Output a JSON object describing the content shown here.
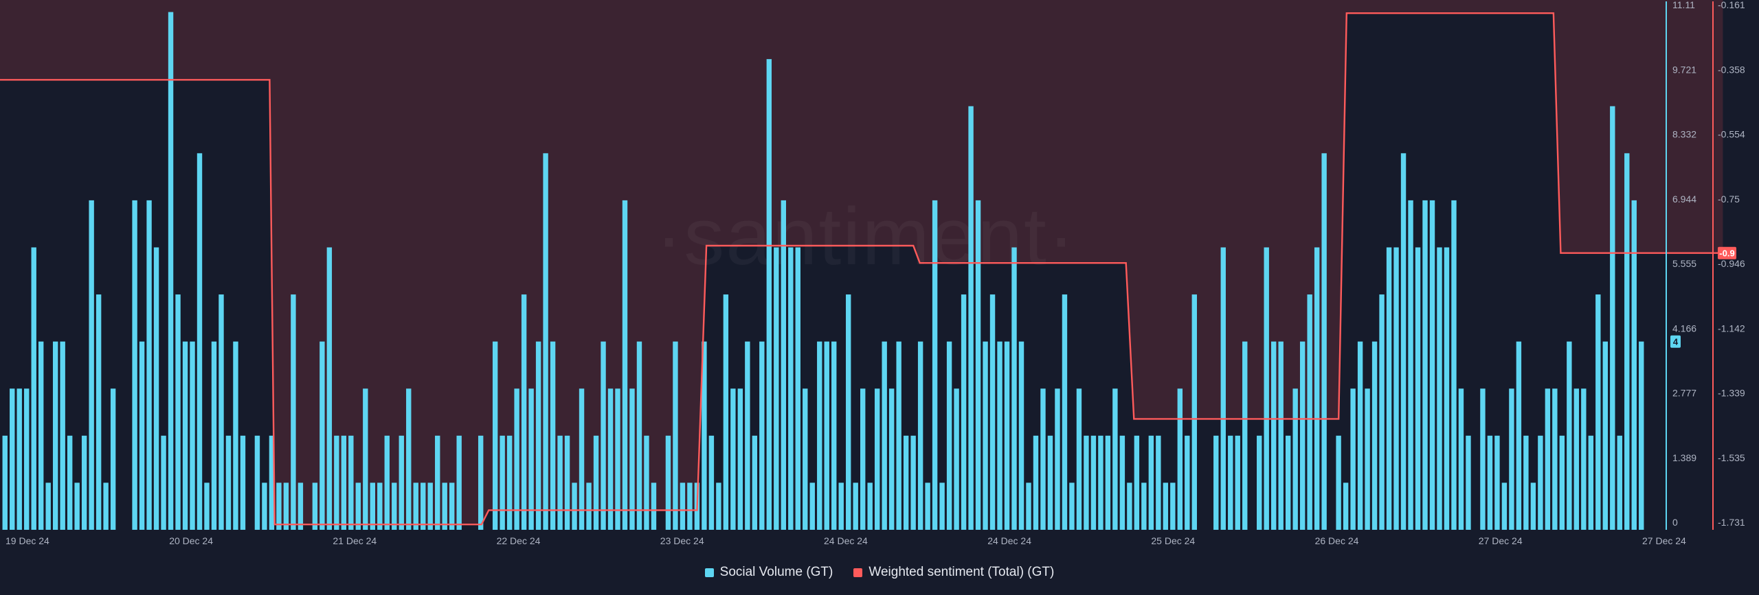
{
  "watermark": "·santiment·",
  "legend": {
    "volume_label": "Social Volume (GT)",
    "sentiment_label": "Weighted sentiment (Total) (GT)"
  },
  "colors": {
    "background": "#161b2b",
    "volume": "#5ed6f2",
    "sentiment_line": "#ff5b5b",
    "negative_fill": "#3d2432",
    "volume_axis": "#5ed6f2",
    "sentiment_axis": "#ff5b5b"
  },
  "chart_data": {
    "type": "bar+line",
    "x_tick_labels": [
      "19 Dec 24",
      "20 Dec 24",
      "21 Dec 24",
      "22 Dec 24",
      "23 Dec 24",
      "24 Dec 24",
      "24 Dec 24",
      "25 Dec 24",
      "26 Dec 24",
      "27 Dec 24",
      "27 Dec 24"
    ],
    "y_left": {
      "ticks": [
        "11.11",
        "9.721",
        "8.332",
        "6.944",
        "5.555",
        "4.166",
        "2.777",
        "1.389",
        "0"
      ],
      "ylim": [
        0,
        11.11
      ],
      "current_value": "4"
    },
    "y_right": {
      "ticks": [
        "-0.161",
        "-0.358",
        "-0.554",
        "-0.75",
        "-0.946",
        "-1.142",
        "-1.339",
        "-1.535",
        "-1.731"
      ],
      "ylim": [
        -1.731,
        -0.161
      ],
      "current_value": "-0.9"
    },
    "series": [
      {
        "name": "Social Volume (GT)",
        "kind": "bar",
        "values": [
          2,
          3,
          3,
          3,
          6,
          4,
          1,
          4,
          4,
          2,
          1,
          2,
          7,
          5,
          1,
          3,
          0,
          0,
          7,
          4,
          7,
          6,
          2,
          11,
          5,
          4,
          4,
          8,
          1,
          4,
          5,
          2,
          4,
          2,
          0,
          2,
          1,
          2,
          1,
          1,
          5,
          1,
          0,
          1,
          4,
          6,
          2,
          2,
          2,
          1,
          3,
          1,
          1,
          2,
          1,
          2,
          3,
          1,
          1,
          1,
          2,
          1,
          1,
          2,
          0,
          0,
          2,
          0,
          4,
          2,
          2,
          3,
          5,
          3,
          4,
          8,
          4,
          2,
          2,
          1,
          3,
          1,
          2,
          4,
          3,
          3,
          7,
          3,
          4,
          2,
          1,
          0,
          2,
          4,
          1,
          1,
          1,
          4,
          2,
          1,
          5,
          3,
          3,
          4,
          2,
          4,
          10,
          6,
          7,
          6,
          6,
          3,
          1,
          4,
          4,
          4,
          1,
          5,
          1,
          3,
          1,
          3,
          4,
          3,
          4,
          2,
          2,
          4,
          1,
          7,
          1,
          4,
          3,
          5,
          9,
          7,
          4,
          5,
          4,
          4,
          6,
          4,
          1,
          2,
          3,
          2,
          3,
          5,
          1,
          3,
          2,
          2,
          2,
          2,
          3,
          2,
          1,
          2,
          1,
          2,
          2,
          1,
          1,
          3,
          2,
          5,
          0,
          0,
          2,
          6,
          2,
          2,
          4,
          0,
          2,
          6,
          4,
          4,
          2,
          3,
          4,
          5,
          6,
          8,
          0,
          2,
          1,
          3,
          4,
          3,
          4,
          5,
          6,
          6,
          8,
          7,
          6,
          7,
          7,
          6,
          6,
          7,
          3,
          2,
          0,
          3,
          2,
          2,
          1,
          3,
          4,
          2,
          1,
          2,
          3,
          3,
          2,
          4,
          3,
          3,
          2,
          5,
          4,
          9,
          2,
          8,
          7,
          4
        ],
        "unit_note": "Social volume count per bucket"
      },
      {
        "name": "Weighted sentiment (Total) (GT)",
        "kind": "step-line",
        "points": [
          {
            "x": 0,
            "y": -0.38
          },
          {
            "x": 37.4,
            "y": -0.38
          },
          {
            "x": 38.1,
            "y": -1.715
          },
          {
            "x": 66.8,
            "y": -1.715
          },
          {
            "x": 67.8,
            "y": -1.672
          },
          {
            "x": 96.7,
            "y": -1.672
          },
          {
            "x": 98.0,
            "y": -0.878
          },
          {
            "x": 126.7,
            "y": -0.878
          },
          {
            "x": 127.6,
            "y": -0.93
          },
          {
            "x": 156.2,
            "y": -0.93
          },
          {
            "x": 157.3,
            "y": -1.398
          },
          {
            "x": 185.7,
            "y": -1.398
          },
          {
            "x": 186.8,
            "y": -0.18
          },
          {
            "x": 215.5,
            "y": -0.18
          },
          {
            "x": 216.5,
            "y": -0.9
          },
          {
            "x": 239,
            "y": -0.9
          }
        ]
      }
    ],
    "negative_region_fill": "#3d2432",
    "grid": false,
    "legend_position": "bottom-center"
  }
}
